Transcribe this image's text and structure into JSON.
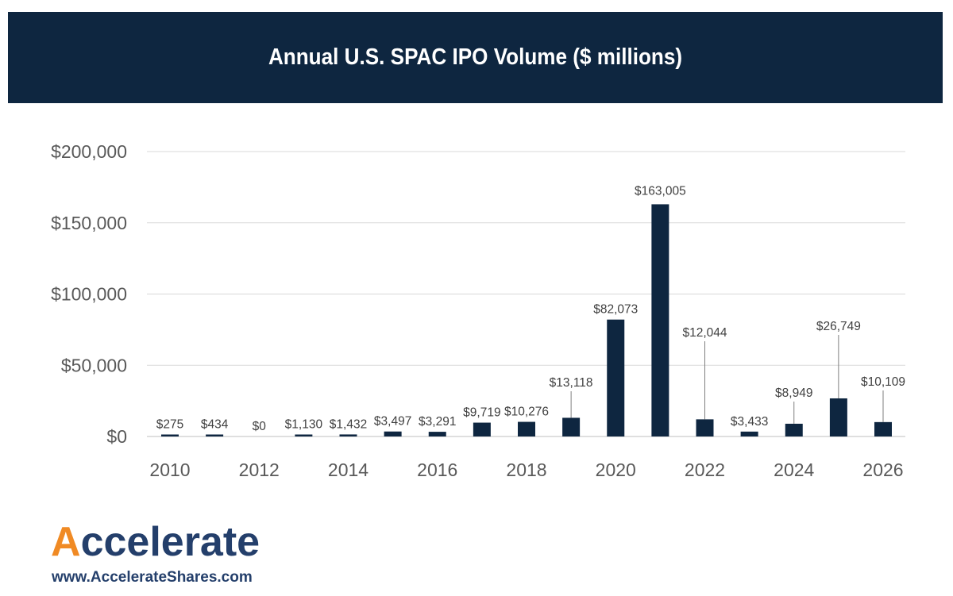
{
  "chart_data": {
    "type": "bar",
    "title": "Annual U.S. SPAC IPO Volume ($ millions)",
    "categories": [
      "2010",
      "2011",
      "2012",
      "2013",
      "2014",
      "2015",
      "2016",
      "2017",
      "2018",
      "2019",
      "2020",
      "2021",
      "2022",
      "2023",
      "2024",
      "2025",
      "2026"
    ],
    "values": [
      275,
      434,
      0,
      1130,
      1432,
      3497,
      3291,
      9719,
      10276,
      13118,
      82073,
      163005,
      12044,
      3433,
      8949,
      26749,
      10109
    ],
    "data_labels": [
      "$275",
      "$434",
      "$0",
      "$1,130",
      "$1,432",
      "$3,497",
      "$3,291",
      "$9,719",
      "$10,276",
      "$13,118",
      "$82,073",
      "$163,005",
      "$12,044",
      "$3,433",
      "$8,949",
      "$26,749",
      "$10,109"
    ],
    "x_tick_labels": [
      "2010",
      "2012",
      "2014",
      "2016",
      "2018",
      "2020",
      "2022",
      "2024",
      "2026"
    ],
    "y_ticks": [
      0,
      50000,
      100000,
      150000,
      200000
    ],
    "y_tick_labels": [
      "$0",
      "$50,000",
      "$100,000",
      "$150,000",
      "$200,000"
    ],
    "ylim": [
      0,
      200000
    ],
    "grid": true,
    "legend": "none",
    "colors": {
      "bar": "#0e2640",
      "title_bg": "#0e2640",
      "grid": "#d9d9d9"
    }
  },
  "logo": {
    "word": "Accelerate",
    "url": "www.AccelerateShares.com",
    "colors": {
      "mark": "#f08a24",
      "text": "#243f6b"
    }
  }
}
